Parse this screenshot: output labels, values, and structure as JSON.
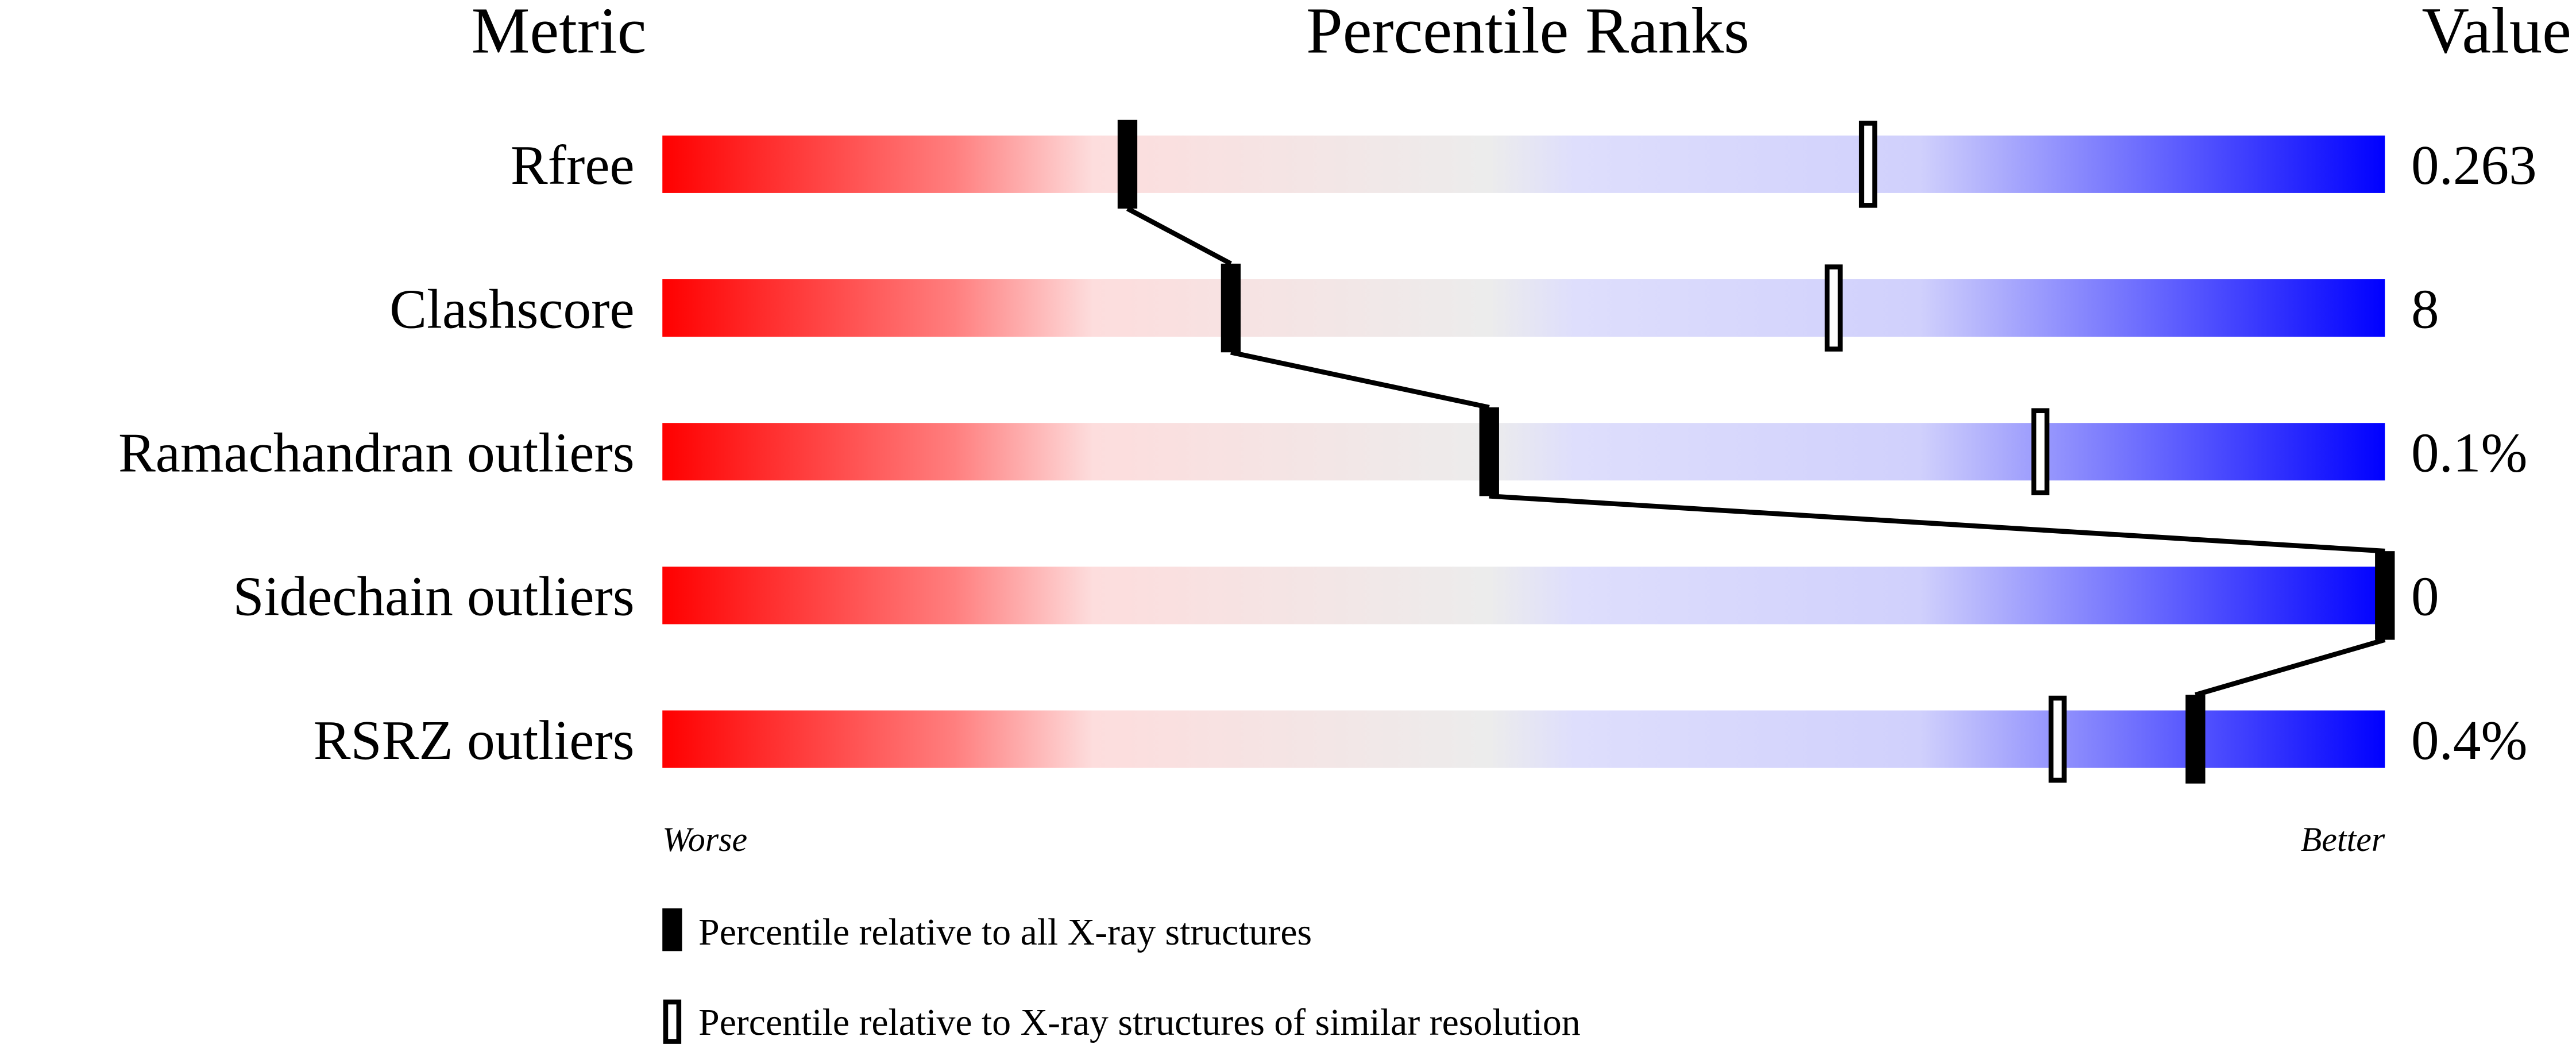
{
  "chart_data": {
    "type": "percentile-slider",
    "headers": {
      "metric": "Metric",
      "ranks": "Percentile Ranks",
      "value": "Value"
    },
    "xlim": [
      0,
      100
    ],
    "axis_labels": {
      "left": "Worse",
      "right": "Better"
    },
    "gradient_colors": [
      "#ff0000",
      "#fddddd",
      "#ececec",
      "#dcdcfc",
      "#d0d0fc",
      "#0000ff"
    ],
    "rows": [
      {
        "metric": "Rfree",
        "value": "0.263",
        "percentile_all": 27,
        "percentile_similar": 70
      },
      {
        "metric": "Clashscore",
        "value": "8",
        "percentile_all": 33,
        "percentile_similar": 68
      },
      {
        "metric": "Ramachandran outliers",
        "value": "0.1%",
        "percentile_all": 48,
        "percentile_similar": 80
      },
      {
        "metric": "Sidechain outliers",
        "value": "0",
        "percentile_all": 100,
        "percentile_similar": 100
      },
      {
        "metric": "RSRZ outliers",
        "value": "0.4%",
        "percentile_all": 89,
        "percentile_similar": 81
      }
    ],
    "legend": [
      {
        "marker": "filled",
        "label": "Percentile relative to all X-ray structures"
      },
      {
        "marker": "open",
        "label": "Percentile relative to X-ray structures of similar resolution"
      }
    ]
  }
}
